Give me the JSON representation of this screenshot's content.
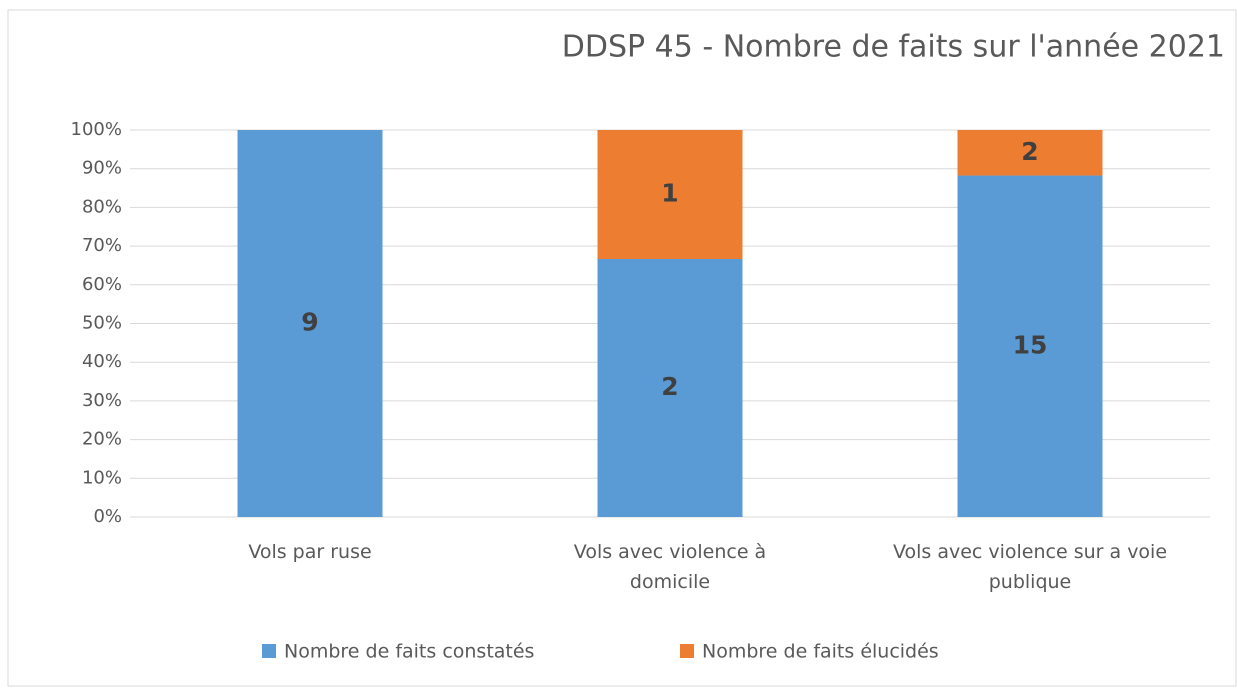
{
  "chart_data": {
    "type": "stacked_bar_100",
    "title": "DDSP 45 - Nombre de faits sur l'année 2021",
    "categories": [
      "Vols par ruse",
      "Vols avec violence à domicile",
      "Vols avec violence sur a voie publique"
    ],
    "series": [
      {
        "name": "Nombre de faits constatés",
        "color": "#5b9bd5",
        "values": [
          9,
          2,
          15
        ]
      },
      {
        "name": "Nombre de faits élucidés",
        "color": "#ed7d31",
        "values": [
          null,
          1,
          2
        ]
      }
    ],
    "ylim": [
      0,
      100
    ],
    "yticks": [
      {
        "value": 0,
        "label": "0%"
      },
      {
        "value": 10,
        "label": "10%"
      },
      {
        "value": 20,
        "label": "20%"
      },
      {
        "value": 30,
        "label": "30%"
      },
      {
        "value": 40,
        "label": "40%"
      },
      {
        "value": 50,
        "label": "50%"
      },
      {
        "value": 60,
        "label": "60%"
      },
      {
        "value": 70,
        "label": "70%"
      },
      {
        "value": 80,
        "label": "80%"
      },
      {
        "value": 90,
        "label": "90%"
      },
      {
        "value": 100,
        "label": "100%"
      }
    ],
    "grid": true,
    "legend": "bottom"
  }
}
